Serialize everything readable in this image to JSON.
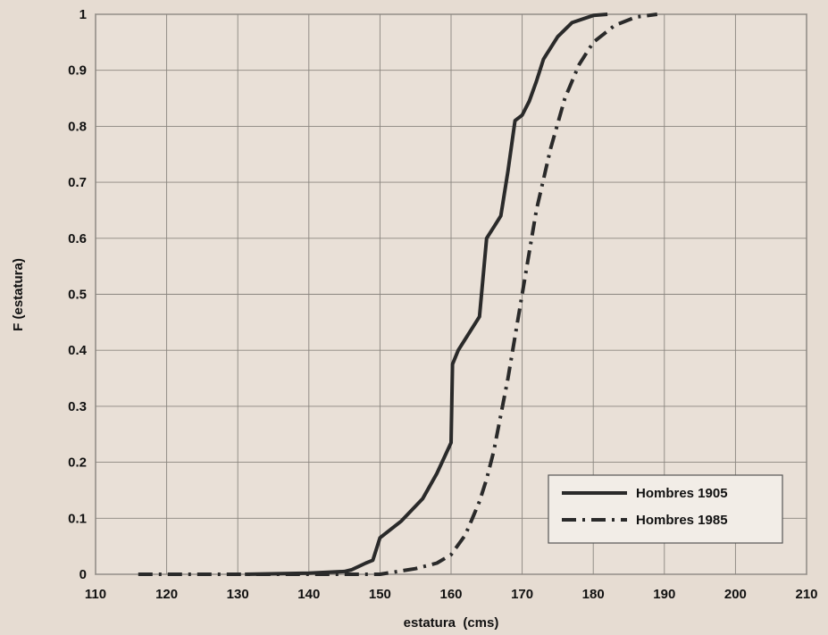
{
  "chart_data": {
    "type": "line",
    "title": "",
    "xlabel": "estatura  (cms)",
    "ylabel": "F (estatura)",
    "xlim": [
      110,
      210
    ],
    "ylim": [
      0,
      1
    ],
    "x_ticks": [
      110,
      120,
      130,
      140,
      150,
      160,
      170,
      180,
      190,
      200,
      210
    ],
    "y_ticks": [
      0,
      0.1,
      0.2,
      0.3,
      0.4,
      0.5,
      0.6,
      0.7,
      0.8,
      0.9,
      1
    ],
    "x_tick_labels": [
      "110",
      "120",
      "130",
      "140",
      "150",
      "160",
      "170",
      "180",
      "190",
      "200",
      "210"
    ],
    "y_tick_labels": [
      "0",
      "0.1",
      "0.2",
      "0.3",
      "0.4",
      "0.5",
      "0.6",
      "0.7",
      "0.8",
      "0.9",
      "1"
    ],
    "grid": true,
    "legend": "bottom-right",
    "series": [
      {
        "name": "Hombres 1905",
        "style": "solid",
        "color": "#2a2a2a",
        "x": [
          131,
          140,
          145,
          146,
          148,
          149,
          150,
          153,
          156,
          158,
          160,
          160.2,
          161,
          164,
          165,
          166,
          167,
          168,
          169,
          170,
          171,
          172,
          173,
          175,
          177,
          180,
          182
        ],
        "y": [
          0,
          0.002,
          0.005,
          0.008,
          0.02,
          0.025,
          0.065,
          0.095,
          0.135,
          0.18,
          0.235,
          0.375,
          0.4,
          0.46,
          0.6,
          0.62,
          0.64,
          0.72,
          0.81,
          0.82,
          0.845,
          0.88,
          0.92,
          0.96,
          0.985,
          0.998,
          1
        ]
      },
      {
        "name": "Hombres 1985",
        "style": "dash-dot",
        "color": "#2a2a2a",
        "x": [
          116,
          130,
          140,
          150,
          155,
          158,
          160,
          162,
          163,
          164,
          165,
          166,
          168,
          170,
          172,
          174,
          176,
          178,
          180,
          183,
          186,
          189
        ],
        "y": [
          0,
          0,
          0,
          0,
          0.01,
          0.02,
          0.035,
          0.07,
          0.1,
          0.13,
          0.17,
          0.22,
          0.35,
          0.5,
          0.65,
          0.76,
          0.85,
          0.91,
          0.95,
          0.98,
          0.995,
          1
        ]
      }
    ]
  }
}
